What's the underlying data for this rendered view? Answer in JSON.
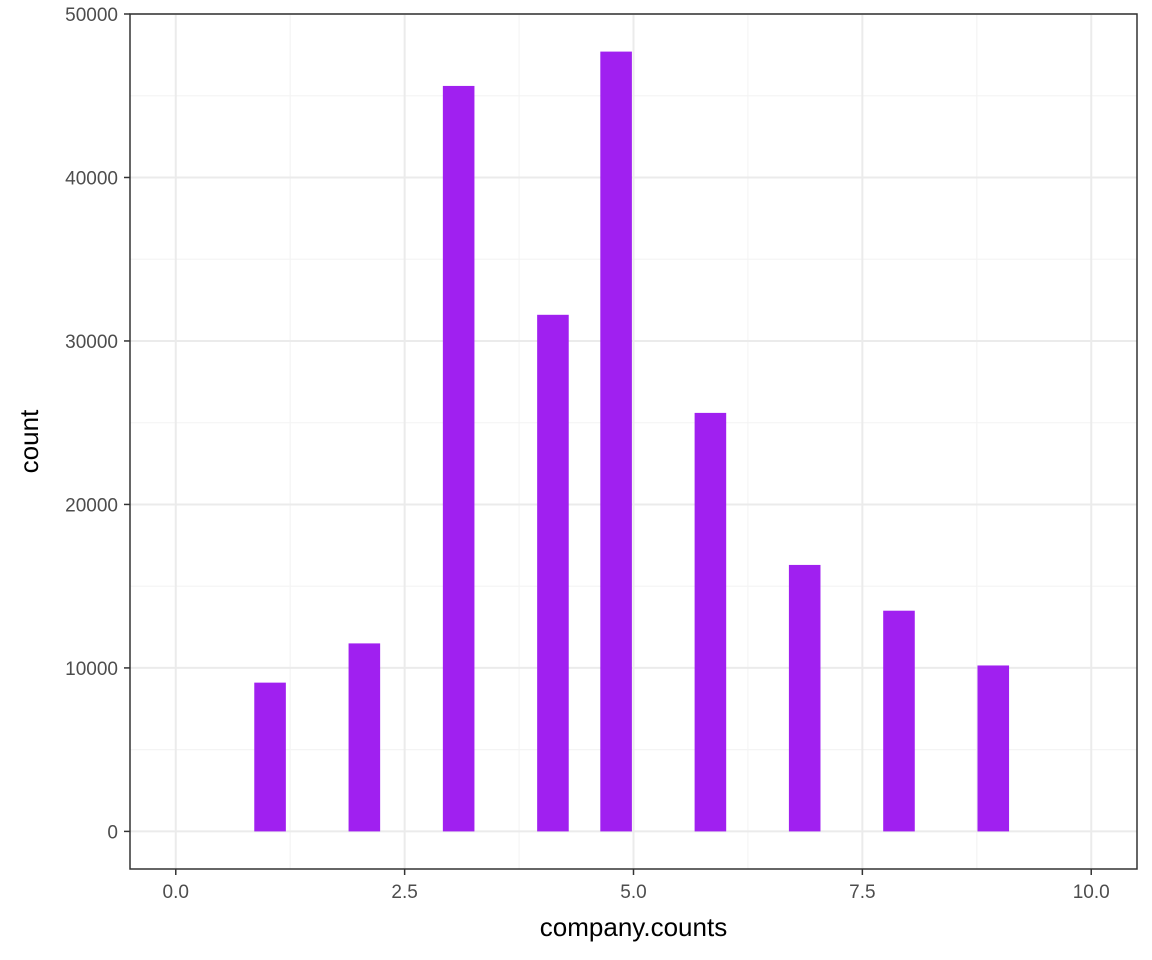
{
  "chart_data": {
    "type": "bar",
    "title": "",
    "xlabel": "company.counts",
    "ylabel": "count",
    "xlim": [
      -0.5,
      10.5
    ],
    "ylim": [
      -2300,
      50000
    ],
    "x_ticks": [
      0.0,
      2.5,
      5.0,
      7.5,
      10.0
    ],
    "x_tick_labels": [
      "0.0",
      "2.5",
      "5.0",
      "7.5",
      "10.0"
    ],
    "y_ticks": [
      0,
      10000,
      20000,
      30000,
      40000,
      50000
    ],
    "y_tick_labels": [
      "0",
      "10000",
      "20000",
      "30000",
      "40000",
      "50000"
    ],
    "bin_width": 0.345,
    "x": [
      1.03,
      2.06,
      3.09,
      4.12,
      4.81,
      5.84,
      6.87,
      7.9,
      8.93
    ],
    "values": [
      9100,
      11500,
      45600,
      31600,
      47700,
      25600,
      16300,
      13500,
      10150
    ],
    "grid": true,
    "legend": "none",
    "colors": {
      "bar": "#a020f0",
      "panel_border": "#333333",
      "grid_major": "#ebebeb",
      "grid_minor": "#f4f4f4",
      "tick_text": "#4d4d4d"
    }
  }
}
